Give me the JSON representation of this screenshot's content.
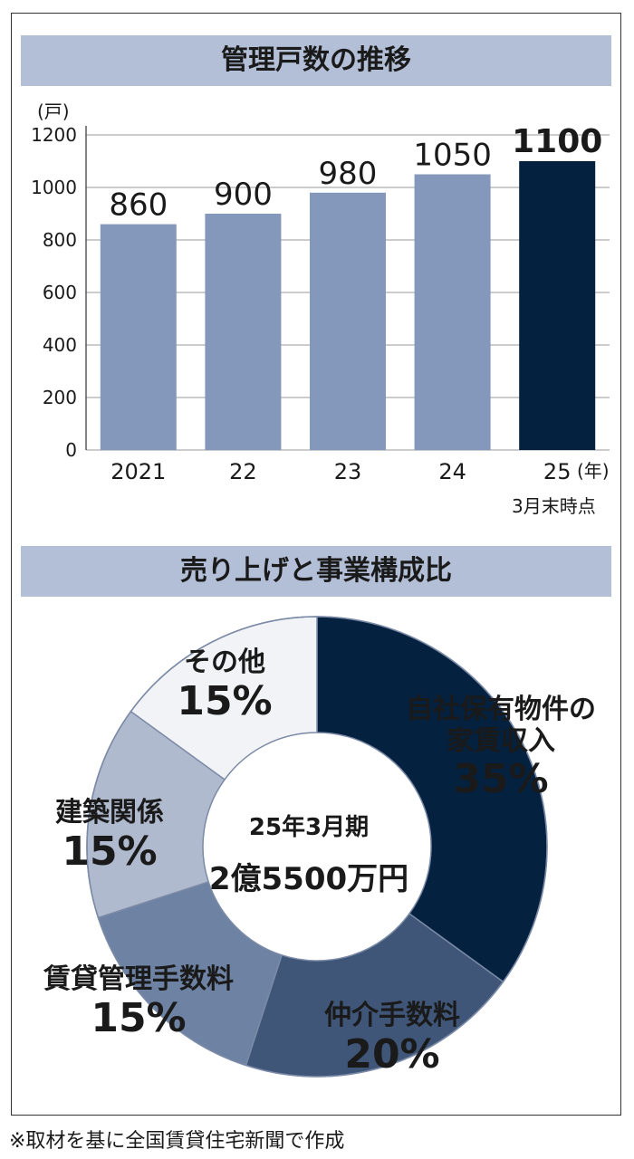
{
  "footnote": "※取材を基に全国賃貸住宅新聞で作成",
  "colors": {
    "bar_light": "#8498bb",
    "bar_dark": "#04213f",
    "title_band": "#b2bfd6",
    "pie": [
      "#04213f",
      "#3f5679",
      "#6e83a4",
      "#b0bace",
      "#f1f3f7"
    ]
  },
  "chart_data": [
    {
      "type": "bar",
      "title": "管理戸数の推移",
      "unit_label": "(戸)",
      "x_unit_label": "(年)",
      "note": "3月末時点",
      "categories": [
        "2021",
        "22",
        "23",
        "24",
        "25"
      ],
      "values": [
        860,
        900,
        980,
        1050,
        1100
      ],
      "value_labels": [
        "860",
        "900",
        "980",
        "1050",
        "1100"
      ],
      "highlight_index": 4,
      "ylim": [
        0,
        1200
      ],
      "yticks": [
        0,
        200,
        400,
        600,
        800,
        1000,
        1200
      ],
      "ytick_labels": [
        "0",
        "200",
        "400",
        "600",
        "800",
        "1000",
        "1200"
      ],
      "grid": true
    },
    {
      "type": "pie",
      "title": "売り上げと事業構成比",
      "center_line1": "25年3月期",
      "center_line2": "2億5500万円",
      "slices": [
        {
          "name": "自社保有物件の\n家賃収入",
          "value": 35,
          "label": "35%"
        },
        {
          "name": "仲介手数料",
          "value": 20,
          "label": "20%"
        },
        {
          "name": "賃貸管理手数料",
          "value": 15,
          "label": "15%"
        },
        {
          "name": "建築関係",
          "value": 15,
          "label": "15%"
        },
        {
          "name": "その他",
          "value": 15,
          "label": "15%"
        }
      ]
    }
  ]
}
